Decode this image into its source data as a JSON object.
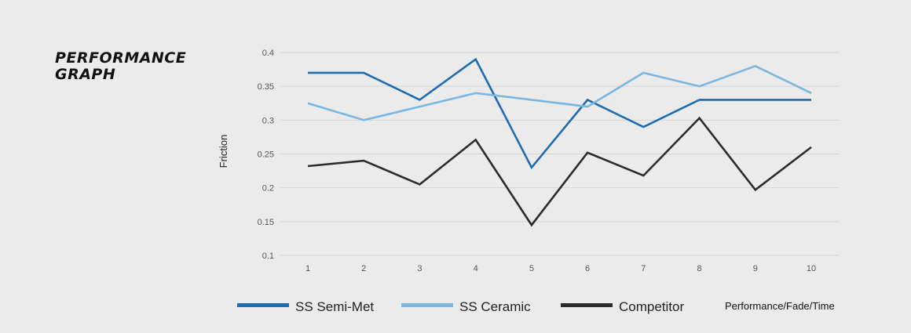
{
  "heading": {
    "line1": "PERFORMANCE",
    "line2": "GRAPH"
  },
  "chart_data": {
    "type": "line",
    "ylabel": "Friction",
    "xlabel": "Performance/Fade/Time",
    "ylim": [
      0.1,
      0.4
    ],
    "yticks": [
      "0.1",
      "0.15",
      "0.2",
      "0.25",
      "0.3",
      "0.35",
      "0.4"
    ],
    "x": [
      1,
      2,
      3,
      4,
      5,
      6,
      7,
      8,
      9,
      10
    ],
    "grid": true,
    "legend_position": "bottom",
    "series": [
      {
        "name": "SS Semi-Met",
        "color": "#1f6bb0",
        "values": [
          0.37,
          0.37,
          0.33,
          0.39,
          0.23,
          0.33,
          0.29,
          0.33,
          0.33,
          0.33
        ]
      },
      {
        "name": "SS Ceramic",
        "color": "#7ab6df",
        "values": [
          0.325,
          0.3,
          0.32,
          0.34,
          0.33,
          0.32,
          0.37,
          0.35,
          0.38,
          0.34
        ]
      },
      {
        "name": "Competitor",
        "color": "#2b2b2b",
        "values": [
          0.232,
          0.24,
          0.205,
          0.271,
          0.145,
          0.252,
          0.218,
          0.303,
          0.197,
          0.26
        ]
      }
    ]
  }
}
